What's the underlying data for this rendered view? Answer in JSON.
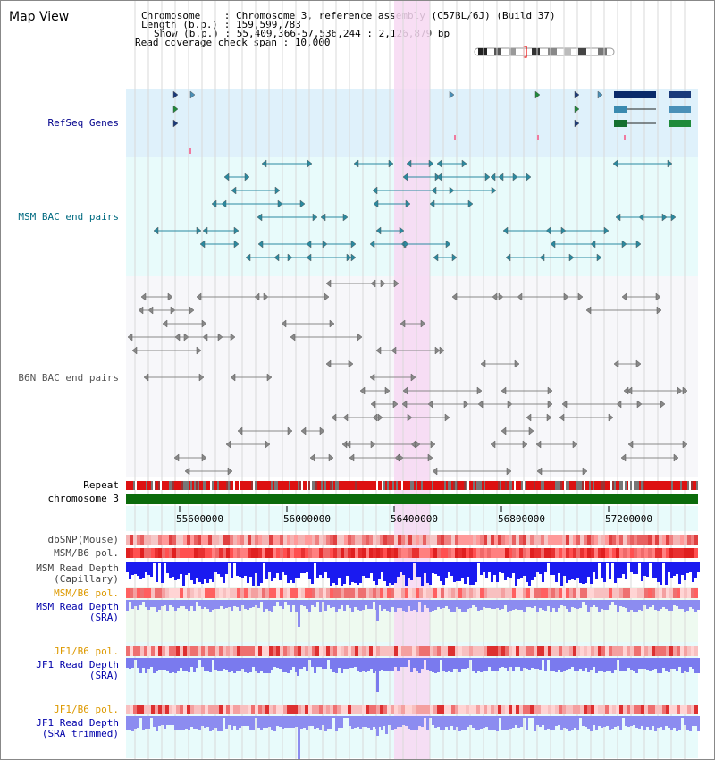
{
  "title": "Map View",
  "info": {
    "chromosome": "Chromosome    : Chromosome 3, reference assembly (C57BL/6J) (Build 37)",
    "length": "Length (b.p.) : 159,599,783",
    "show": "Show (b.p.) : 55,409,366-57,536,244 : 2,126,879 bp",
    "coverage": "Read coverage check span : 10,000"
  },
  "tracks": {
    "refseq": "RefSeq Genes",
    "msm_bac": "MSM BAC end pairs",
    "b6n_bac": "B6N BAC end pairs",
    "repeat": "Repeat",
    "chromosome": "chromosome 3",
    "dbsnp": "dbSNP(Mouse)",
    "msm_pol1": "MSM/B6 pol.",
    "msm_depth_cap_1": "MSM Read Depth",
    "msm_depth_cap_2": "(Capillary)",
    "msm_pol2": "MSM/B6 pol.",
    "msm_depth_sra_1": "MSM Read Depth",
    "msm_depth_sra_2": "(SRA)",
    "jf1_pol1": "JF1/B6 pol.",
    "jf1_depth_sra_1": "JF1 Read Depth",
    "jf1_depth_sra_2": "(SRA)",
    "jf1_pol2": "JF1/B6 pol.",
    "jf1_depth_trim_1": "JF1 Read Depth",
    "jf1_depth_trim_2": "(SRA trimmed)"
  },
  "axis": {
    "ticks": [
      "55600000",
      "56000000",
      "56400000",
      "56800000",
      "57200000"
    ]
  },
  "colors": {
    "refseq_bg": "#dff1fb",
    "msm_bg": "#e8fbfb",
    "b6n_bg": "#f7f7fa",
    "highlight": "#f7d8f2",
    "refseq_label": "#00008b",
    "msm_label": "#006a80",
    "b6n_label": "#555555",
    "orange_label": "#dd9900",
    "blue_label": "#0000aa"
  }
}
